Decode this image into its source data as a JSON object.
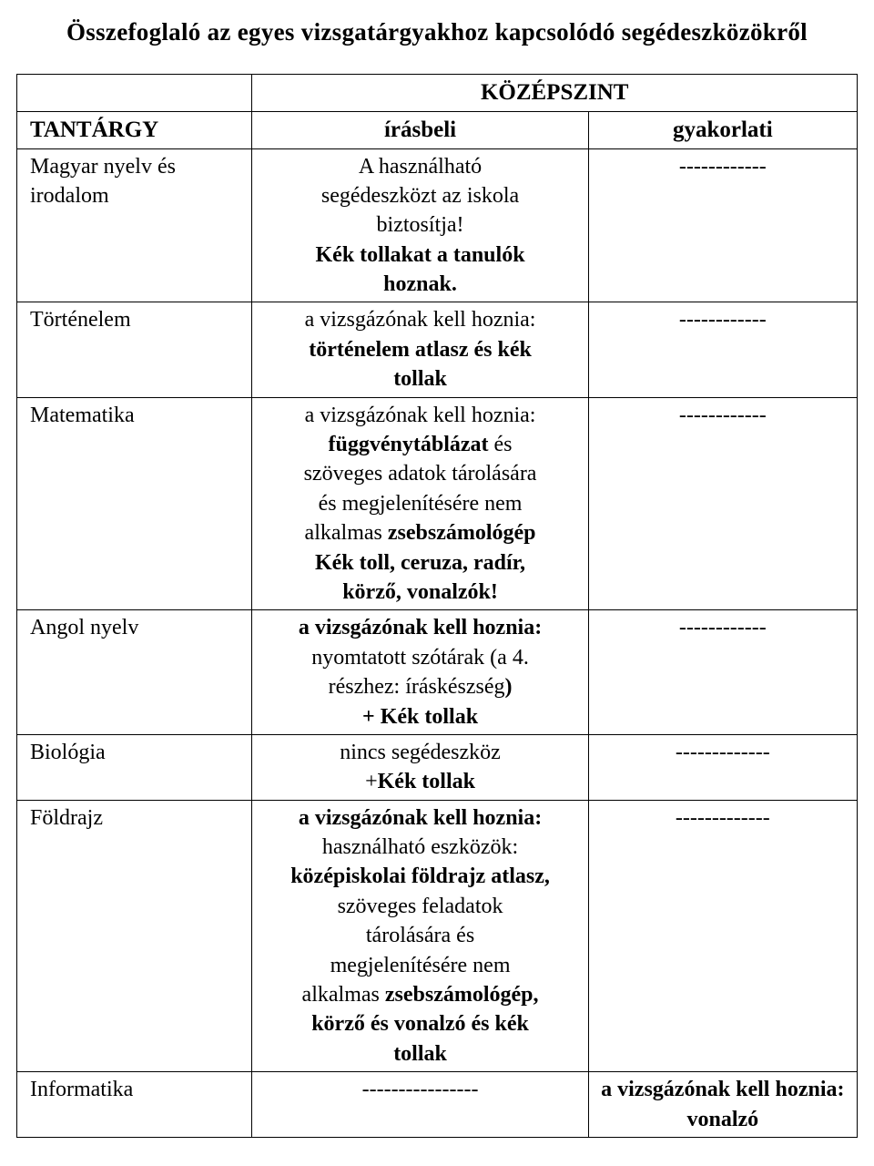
{
  "title": "Összefoglaló az egyes vizsgatárgyakhoz kapcsolódó segédeszközökről",
  "header": {
    "merged": "KÖZÉPSZINT",
    "subject": "TANTÁRGY",
    "irasbeli": "írásbeli",
    "gyakorlati": "gyakorlati"
  },
  "rows": {
    "magyar": {
      "subject_l1": "Magyar nyelv és",
      "subject_l2": "irodalom",
      "iras_l1": "A használható",
      "iras_l2": "segédeszközt az iskola",
      "iras_l3": "biztosítja!",
      "iras_l4": "Kék tollakat a tanulók",
      "iras_l5": "hoznak.",
      "gyak": "------------"
    },
    "tortenelem": {
      "subject": "Történelem",
      "iras_l1": "a vizsgázónak kell hoznia:",
      "iras_l2": "történelem atlasz és kék",
      "iras_l3": "tollak",
      "gyak": "------------"
    },
    "matematika": {
      "subject": "Matematika",
      "iras_l1": "a vizsgázónak kell hoznia:",
      "iras_l2a": "függvénytáblázat",
      "iras_l2b": " és",
      "iras_l3": "szöveges adatok tárolására",
      "iras_l4": "és megjelenítésére nem",
      "iras_l5a": "alkalmas ",
      "iras_l5b": "zsebszámológép",
      "iras_l6": "Kék toll, ceruza, radír,",
      "iras_l7": "körző, vonalzók!",
      "gyak": "------------"
    },
    "angol": {
      "subject": "Angol nyelv",
      "iras_l1": "a vizsgázónak kell hoznia:",
      "iras_l2": "nyomtatott szótárak (a 4.",
      "iras_l3a": "részhez: íráskészség",
      "iras_l3b": ")",
      "iras_l4": "+ Kék tollak",
      "gyak": "------------"
    },
    "biologia": {
      "subject": "Biológia",
      "iras_l1": "nincs segédeszköz",
      "iras_l2a": "+",
      "iras_l2b": "Kék tollak",
      "gyak": "-------------"
    },
    "foldrajz": {
      "subject": "Földrajz",
      "iras_l1": "a vizsgázónak kell hoznia:",
      "iras_l2": "használható eszközök:",
      "iras_l3": "középiskolai földrajz atlasz,",
      "iras_l4": "szöveges feladatok",
      "iras_l5": "tárolására és",
      "iras_l6": "megjelenítésére nem",
      "iras_l7a": "alkalmas ",
      "iras_l7b": "zsebszámológép,",
      "iras_l8": "körző és vonalzó és kék",
      "iras_l9": "tollak",
      "gyak": "-------------"
    },
    "informatika": {
      "subject": "Informatika",
      "iras": "----------------",
      "gyak_l1": "a vizsgázónak kell hoznia:",
      "gyak_l2": "vonalzó"
    }
  }
}
